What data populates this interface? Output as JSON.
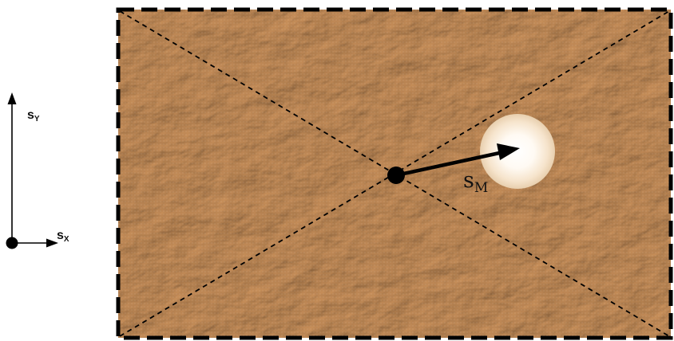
{
  "axes": {
    "x_label_main": "s",
    "x_label_sub": "X",
    "y_label_main": "s",
    "y_label_sub": "Y"
  },
  "vector": {
    "label_main": "s",
    "label_sub": "M"
  },
  "colors": {
    "surface": "#d4aa80",
    "surface_light": "#e2c29c",
    "surface_dark": "#b48a60",
    "border": "#000000",
    "spot": "#fffaf3",
    "spot_edge": "#e8cfae",
    "ink": "#111111"
  },
  "icons": {
    "origin": "filled-circle",
    "center": "filled-circle",
    "axis_heads": "arrowhead",
    "vector_head": "arrowhead",
    "spot": "radial-glow-circle"
  }
}
